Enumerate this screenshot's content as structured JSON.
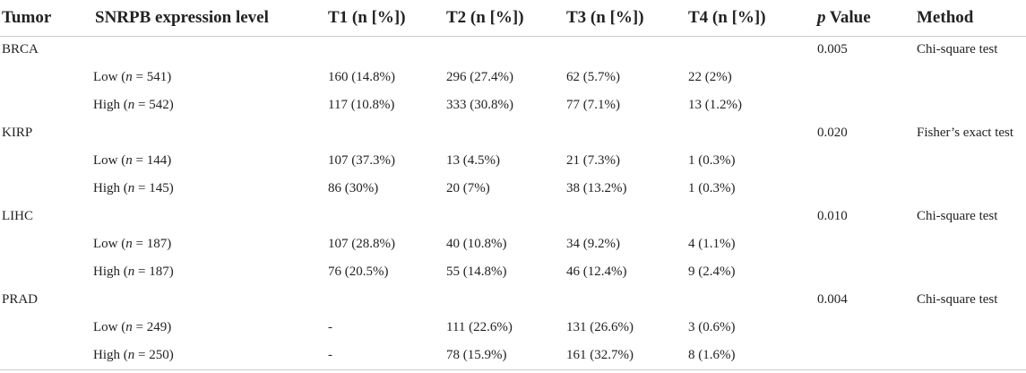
{
  "headers": {
    "tumor": "Tumor",
    "level": "SNRPB expression level",
    "t1": "T1 (n [%])",
    "t2": "T2 (n [%])",
    "t3": "T3 (n [%])",
    "t4": "T4 (n [%])",
    "p_italic": "p",
    "p_rest": " Value",
    "method": "Method"
  },
  "groups": [
    {
      "tumor": "BRCA",
      "p": "0.005",
      "method": "Chi-square test",
      "rows": [
        {
          "label": "Low",
          "n": "541",
          "t1": "160 (14.8%)",
          "t2": "296 (27.4%)",
          "t3": "62 (5.7%)",
          "t4": "22 (2%)"
        },
        {
          "label": "High",
          "n": "542",
          "t1": "117 (10.8%)",
          "t2": "333 (30.8%)",
          "t3": "77 (7.1%)",
          "t4": "13 (1.2%)"
        }
      ]
    },
    {
      "tumor": "KIRP",
      "p": "0.020",
      "method": "Fisher’s exact test",
      "rows": [
        {
          "label": "Low",
          "n": "144",
          "t1": "107 (37.3%)",
          "t2": "13 (4.5%)",
          "t3": "21 (7.3%)",
          "t4": "1 (0.3%)"
        },
        {
          "label": "High",
          "n": "145",
          "t1": "86 (30%)",
          "t2": "20 (7%)",
          "t3": "38 (13.2%)",
          "t4": "1 (0.3%)"
        }
      ]
    },
    {
      "tumor": "LIHC",
      "p": "0.010",
      "method": "Chi-square test",
      "rows": [
        {
          "label": "Low",
          "n": "187",
          "t1": "107 (28.8%)",
          "t2": "40 (10.8%)",
          "t3": "34 (9.2%)",
          "t4": "4 (1.1%)"
        },
        {
          "label": "High",
          "n": "187",
          "t1": "76 (20.5%)",
          "t2": "55 (14.8%)",
          "t3": "46 (12.4%)",
          "t4": "9 (2.4%)"
        }
      ]
    },
    {
      "tumor": "PRAD",
      "p": "0.004",
      "method": "Chi-square test",
      "rows": [
        {
          "label": "Low",
          "n": "249",
          "t1": "-",
          "t2": "111 (22.6%)",
          "t3": "131 (26.6%)",
          "t4": "3 (0.6%)"
        },
        {
          "label": "High",
          "n": "250",
          "t1": "-",
          "t2": "78 (15.9%)",
          "t3": "161 (32.7%)",
          "t4": "8 (1.6%)"
        }
      ]
    }
  ]
}
